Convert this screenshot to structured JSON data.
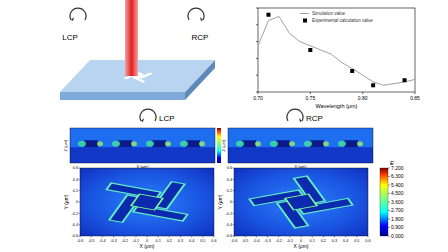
{
  "schematic": {
    "labels": [
      "LCP",
      "RCP"
    ]
  },
  "chart_data": {
    "type": "line",
    "x_label": "Wavelength (μm)",
    "xlim": [
      0.7,
      0.85
    ],
    "xticks": [
      {
        "value": 0.7,
        "label": "0.70"
      },
      {
        "value": 0.75,
        "label": "0.75"
      },
      {
        "value": 0.8,
        "label": "0.80"
      },
      {
        "value": 0.85,
        "label": "0.85"
      }
    ],
    "ylim": [
      0,
      1
    ],
    "yticks": [
      0,
      0.2,
      0.4,
      0.6,
      0.8,
      1
    ],
    "tick_labels": "x",
    "legend": "upper right",
    "series": [
      {
        "name": "Simulation value",
        "type": "line",
        "color": "#a0a0a0",
        "line_style": "solid",
        "x": [
          0.7,
          0.71,
          0.72,
          0.73,
          0.74,
          0.75,
          0.76,
          0.77,
          0.78,
          0.79,
          0.8,
          0.81,
          0.82,
          0.83,
          0.84,
          0.85
        ],
        "values": [
          0.55,
          0.85,
          0.9,
          0.7,
          0.6,
          0.55,
          0.5,
          0.45,
          0.35,
          0.28,
          0.2,
          0.12,
          0.08,
          0.1,
          0.12,
          0.15
        ]
      },
      {
        "name": "Experimental calculation value",
        "type": "scatter",
        "marker": "square",
        "color": "#000000",
        "x": [
          0.71,
          0.75,
          0.79,
          0.81,
          0.84
        ],
        "values": [
          0.92,
          0.5,
          0.25,
          0.08,
          0.14
        ]
      }
    ]
  },
  "field_maps": [
    {
      "label": "LCP",
      "xz": {
        "x_label": "X (μm)",
        "y_label": "Z (μm)"
      },
      "xy": {
        "x_label": "X (μm)",
        "y_label": "Y (μm)",
        "xticks": [
          -0.6,
          -0.5,
          -0.4,
          -0.3,
          -0.2,
          -0.1,
          0,
          0.1,
          0.2,
          0.3,
          0.4,
          0.5,
          0.6
        ],
        "yticks": [
          -0.6,
          -0.4,
          -0.2,
          0,
          0.2,
          0.4,
          0.6
        ]
      }
    },
    {
      "label": "RCP",
      "xz": {
        "x_label": "X (μm)",
        "y_label": "Z (μm)"
      },
      "xy": {
        "x_label": "X (μm)",
        "y_label": "Y (μm)",
        "xticks": [
          -0.6,
          -0.5,
          -0.4,
          -0.3,
          -0.2,
          -0.1,
          0,
          0.1,
          0.2,
          0.3,
          0.4,
          0.5,
          0.6
        ],
        "yticks": [
          -0.6,
          -0.4,
          -0.2,
          0,
          0.2,
          0.4,
          0.6
        ]
      }
    }
  ],
  "colorbar": {
    "title": "E",
    "range": [
      0,
      7.2
    ],
    "ticks": [
      {
        "value": 7.2,
        "label": "7.200"
      },
      {
        "value": 6.3,
        "label": "6.300"
      },
      {
        "value": 5.4,
        "label": "5.400"
      },
      {
        "value": 4.5,
        "label": "4.500"
      },
      {
        "value": 3.6,
        "label": "3.600"
      },
      {
        "value": 2.7,
        "label": "2.700"
      },
      {
        "value": 1.8,
        "label": "1.800"
      },
      {
        "value": 0.9,
        "label": "0.900"
      },
      {
        "value": 0,
        "label": "0.000"
      }
    ]
  }
}
